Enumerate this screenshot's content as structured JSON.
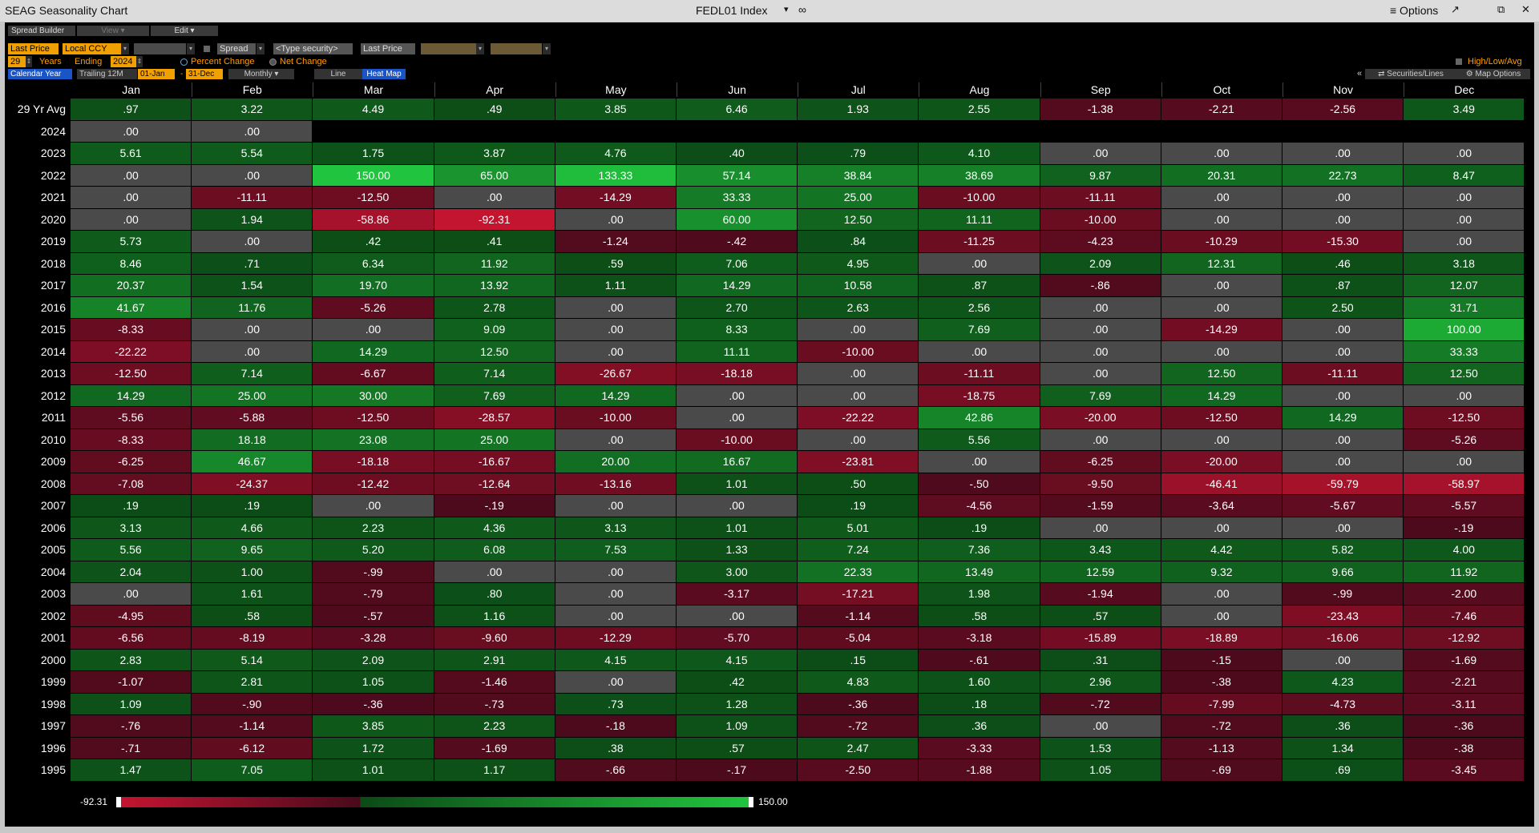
{
  "window": {
    "title": "SEAG Seasonality Chart",
    "security": "FEDL01 Index",
    "menu_caret": "▾",
    "options_label": "≡ Options",
    "win_buttons": [
      "↗",
      "⧉",
      "✕"
    ]
  },
  "toolbar": {
    "spread_builder": "Spread Builder",
    "view": "View ▾",
    "edit": "Edit ▾"
  },
  "controls": {
    "field1": "Last Price",
    "currency": "Local CCY",
    "spread": "Spread",
    "type_security": "<Type security>",
    "field2": "Last Price",
    "years_value": "29",
    "years_label": "Years",
    "ending_label": "Ending",
    "ending_value": "2024",
    "percent_change": "Percent Change",
    "net_change": "Net Change",
    "calendar_year": "Calendar Year",
    "trailing": "Trailing 12M",
    "start_date": "01-Jan",
    "dash": "-",
    "end_date": "31-Dec",
    "frequency": "Monthly ▾",
    "line": "Line",
    "heat_map": "Heat Map",
    "high_low_avg": "High/Low/Avg",
    "collapse": "«",
    "securities_lines": "⇄ Securities/Lines",
    "map_options": "⚙ Map Options"
  },
  "colors": {
    "neg_max": "#c31430",
    "neg_min": "#4a0a1c",
    "pos_min": "#0c4a16",
    "pos_max": "#21c43e",
    "zero": "#4a4a4a"
  },
  "grid": {
    "months": [
      "Jan",
      "Feb",
      "Mar",
      "Apr",
      "May",
      "Jun",
      "Jul",
      "Aug",
      "Sep",
      "Oct",
      "Nov",
      "Dec"
    ],
    "rows": [
      {
        "label": "29 Yr Avg",
        "values": [
          ".97",
          "3.22",
          "4.49",
          ".49",
          "3.85",
          "6.46",
          "1.93",
          "2.55",
          "-1.38",
          "-2.21",
          "-2.56",
          "3.49"
        ]
      },
      {
        "label": "2024",
        "values": [
          ".00",
          ".00",
          "",
          "",
          "",
          "",
          "",
          "",
          "",
          "",
          "",
          ""
        ]
      },
      {
        "label": "2023",
        "values": [
          "5.61",
          "5.54",
          "1.75",
          "3.87",
          "4.76",
          ".40",
          ".79",
          "4.10",
          ".00",
          ".00",
          ".00",
          ".00"
        ]
      },
      {
        "label": "2022",
        "values": [
          ".00",
          ".00",
          "150.00",
          "65.00",
          "133.33",
          "57.14",
          "38.84",
          "38.69",
          "9.87",
          "20.31",
          "22.73",
          "8.47"
        ]
      },
      {
        "label": "2021",
        "values": [
          ".00",
          "-11.11",
          "-12.50",
          ".00",
          "-14.29",
          "33.33",
          "25.00",
          "-10.00",
          "-11.11",
          ".00",
          ".00",
          ".00"
        ]
      },
      {
        "label": "2020",
        "values": [
          ".00",
          "1.94",
          "-58.86",
          "-92.31",
          ".00",
          "60.00",
          "12.50",
          "11.11",
          "-10.00",
          ".00",
          ".00",
          ".00"
        ]
      },
      {
        "label": "2019",
        "values": [
          "5.73",
          ".00",
          ".42",
          ".41",
          "-1.24",
          "-.42",
          ".84",
          "-11.25",
          "-4.23",
          "-10.29",
          "-15.30",
          ".00"
        ]
      },
      {
        "label": "2018",
        "values": [
          "8.46",
          ".71",
          "6.34",
          "11.92",
          ".59",
          "7.06",
          "4.95",
          ".00",
          "2.09",
          "12.31",
          ".46",
          "3.18"
        ]
      },
      {
        "label": "2017",
        "values": [
          "20.37",
          "1.54",
          "19.70",
          "13.92",
          "1.11",
          "14.29",
          "10.58",
          ".87",
          "-.86",
          ".00",
          ".87",
          "12.07"
        ]
      },
      {
        "label": "2016",
        "values": [
          "41.67",
          "11.76",
          "-5.26",
          "2.78",
          ".00",
          "2.70",
          "2.63",
          "2.56",
          ".00",
          ".00",
          "2.50",
          "31.71"
        ]
      },
      {
        "label": "2015",
        "values": [
          "-8.33",
          ".00",
          ".00",
          "9.09",
          ".00",
          "8.33",
          ".00",
          "7.69",
          ".00",
          "-14.29",
          ".00",
          "100.00"
        ]
      },
      {
        "label": "2014",
        "values": [
          "-22.22",
          ".00",
          "14.29",
          "12.50",
          ".00",
          "11.11",
          "-10.00",
          ".00",
          ".00",
          ".00",
          ".00",
          "33.33"
        ]
      },
      {
        "label": "2013",
        "values": [
          "-12.50",
          "7.14",
          "-6.67",
          "7.14",
          "-26.67",
          "-18.18",
          ".00",
          "-11.11",
          ".00",
          "12.50",
          "-11.11",
          "12.50"
        ]
      },
      {
        "label": "2012",
        "values": [
          "14.29",
          "25.00",
          "30.00",
          "7.69",
          "14.29",
          ".00",
          ".00",
          "-18.75",
          "7.69",
          "14.29",
          ".00",
          ".00"
        ]
      },
      {
        "label": "2011",
        "values": [
          "-5.56",
          "-5.88",
          "-12.50",
          "-28.57",
          "-10.00",
          ".00",
          "-22.22",
          "42.86",
          "-20.00",
          "-12.50",
          "14.29",
          "-12.50"
        ]
      },
      {
        "label": "2010",
        "values": [
          "-8.33",
          "18.18",
          "23.08",
          "25.00",
          ".00",
          "-10.00",
          ".00",
          "5.56",
          ".00",
          ".00",
          ".00",
          "-5.26"
        ]
      },
      {
        "label": "2009",
        "values": [
          "-6.25",
          "46.67",
          "-18.18",
          "-16.67",
          "20.00",
          "16.67",
          "-23.81",
          ".00",
          "-6.25",
          "-20.00",
          ".00",
          ".00"
        ]
      },
      {
        "label": "2008",
        "values": [
          "-7.08",
          "-24.37",
          "-12.42",
          "-12.64",
          "-13.16",
          "1.01",
          ".50",
          "-.50",
          "-9.50",
          "-46.41",
          "-59.79",
          "-58.97"
        ]
      },
      {
        "label": "2007",
        "values": [
          ".19",
          ".19",
          ".00",
          "-.19",
          ".00",
          ".00",
          ".19",
          "-4.56",
          "-1.59",
          "-3.64",
          "-5.67",
          "-5.57"
        ]
      },
      {
        "label": "2006",
        "values": [
          "3.13",
          "4.66",
          "2.23",
          "4.36",
          "3.13",
          "1.01",
          "5.01",
          ".19",
          ".00",
          ".00",
          ".00",
          "-.19"
        ]
      },
      {
        "label": "2005",
        "values": [
          "5.56",
          "9.65",
          "5.20",
          "6.08",
          "7.53",
          "1.33",
          "7.24",
          "7.36",
          "3.43",
          "4.42",
          "5.82",
          "4.00"
        ]
      },
      {
        "label": "2004",
        "values": [
          "2.04",
          "1.00",
          "-.99",
          ".00",
          ".00",
          "3.00",
          "22.33",
          "13.49",
          "12.59",
          "9.32",
          "9.66",
          "11.92"
        ]
      },
      {
        "label": "2003",
        "values": [
          ".00",
          "1.61",
          "-.79",
          ".80",
          ".00",
          "-3.17",
          "-17.21",
          "1.98",
          "-1.94",
          ".00",
          "-.99",
          "-2.00"
        ]
      },
      {
        "label": "2002",
        "values": [
          "-4.95",
          ".58",
          "-.57",
          "1.16",
          ".00",
          ".00",
          "-1.14",
          ".58",
          ".57",
          ".00",
          "-23.43",
          "-7.46"
        ]
      },
      {
        "label": "2001",
        "values": [
          "-6.56",
          "-8.19",
          "-3.28",
          "-9.60",
          "-12.29",
          "-5.70",
          "-5.04",
          "-3.18",
          "-15.89",
          "-18.89",
          "-16.06",
          "-12.92"
        ]
      },
      {
        "label": "2000",
        "values": [
          "2.83",
          "5.14",
          "2.09",
          "2.91",
          "4.15",
          "4.15",
          ".15",
          "-.61",
          ".31",
          "-.15",
          ".00",
          "-1.69"
        ]
      },
      {
        "label": "1999",
        "values": [
          "-1.07",
          "2.81",
          "1.05",
          "-1.46",
          ".00",
          ".42",
          "4.83",
          "1.60",
          "2.96",
          "-.38",
          "4.23",
          "-2.21"
        ]
      },
      {
        "label": "1998",
        "values": [
          "1.09",
          "-.90",
          "-.36",
          "-.73",
          ".73",
          "1.28",
          "-.36",
          ".18",
          "-.72",
          "-7.99",
          "-4.73",
          "-3.11"
        ]
      },
      {
        "label": "1997",
        "values": [
          "-.76",
          "-1.14",
          "3.85",
          "2.23",
          "-.18",
          "1.09",
          "-.72",
          ".36",
          ".00",
          "-.72",
          ".36",
          "-.36"
        ]
      },
      {
        "label": "1996",
        "values": [
          "-.71",
          "-6.12",
          "1.72",
          "-1.69",
          ".38",
          ".57",
          "2.47",
          "-3.33",
          "1.53",
          "-1.13",
          "1.34",
          "-.38"
        ]
      },
      {
        "label": "1995",
        "values": [
          "1.47",
          "7.05",
          "1.01",
          "1.17",
          "-.66",
          "-.17",
          "-2.50",
          "-1.88",
          "1.05",
          "-.69",
          ".69",
          "-3.45"
        ]
      }
    ]
  },
  "legend": {
    "min_label": "-92.31",
    "max_label": "150.00",
    "min": -92.31,
    "max": 150.0
  }
}
